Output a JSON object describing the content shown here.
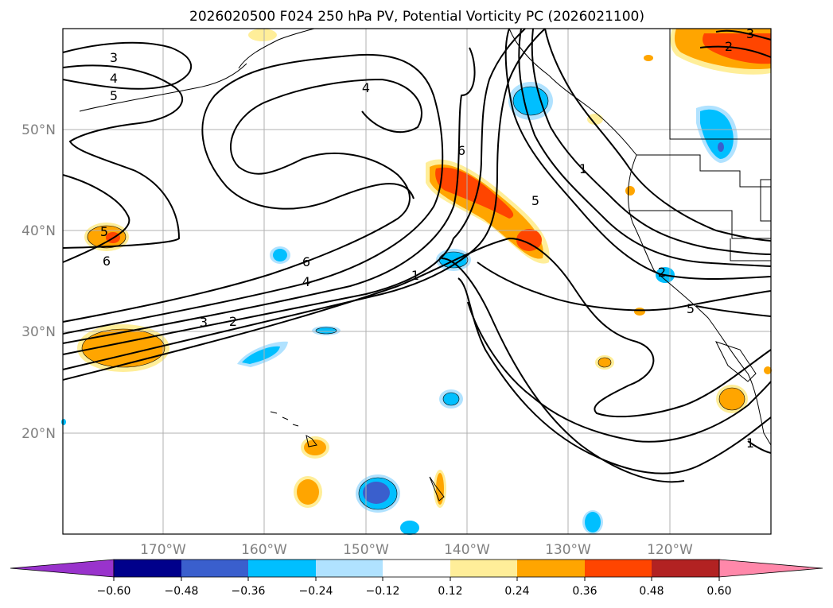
{
  "title": "2026020500 F024 250 hPa PV, Potential Vorticity PC (2026021100)",
  "map": {
    "lat_labels": [
      "50°N",
      "40°N",
      "30°N",
      "20°N"
    ],
    "lon_labels": [
      "170°W",
      "160°W",
      "150°W",
      "140°W",
      "130°W",
      "120°W"
    ],
    "contour_labels": [
      "3",
      "4",
      "5",
      "4",
      "6",
      "4",
      "3",
      "2",
      "1",
      "6",
      "5",
      "1",
      "5",
      "6",
      "2",
      "5",
      "1",
      "2",
      "3"
    ]
  },
  "colorbar": {
    "ticks": [
      "−0.60",
      "−0.48",
      "−0.36",
      "−0.24",
      "−0.12",
      "0.12",
      "0.24",
      "0.36",
      "0.48",
      "0.60"
    ],
    "colors": [
      "#9933cc",
      "#00008b",
      "#3a5fcd",
      "#00bfff",
      "#b0e2ff",
      "#ffffff",
      "#ffee99",
      "#ffa500",
      "#ff4500",
      "#b22222",
      "#ff88aa"
    ]
  },
  "colors": {
    "grid": "#b0b0b0",
    "contour": "#000000",
    "land_line": "#000000"
  }
}
